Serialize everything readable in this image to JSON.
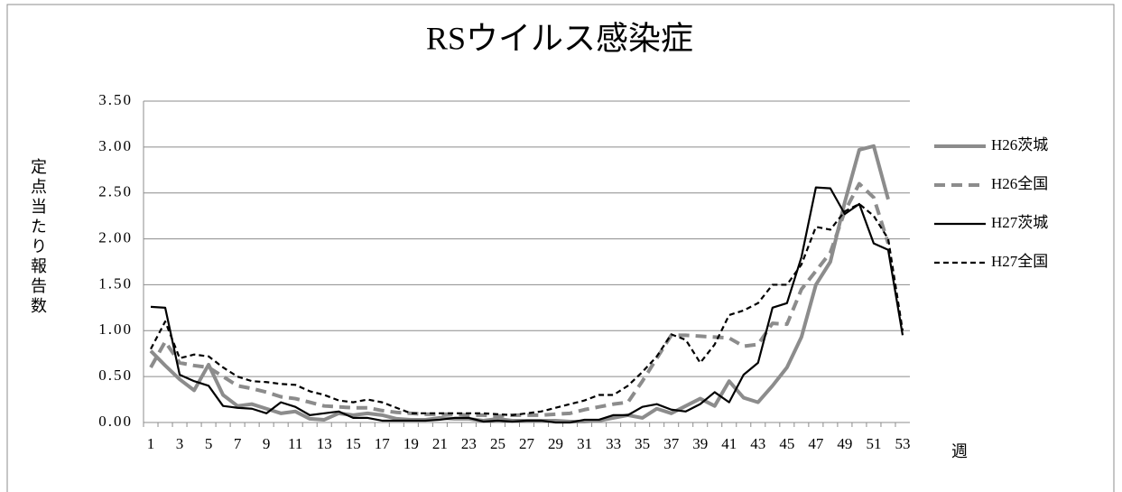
{
  "chart_data": {
    "type": "line",
    "title": "RSウイルス感染症",
    "y_label": "定点当たり報告数",
    "x_label": "週",
    "categories": [
      1,
      null,
      3,
      null,
      5,
      null,
      7,
      null,
      9,
      null,
      11,
      null,
      13,
      null,
      15,
      null,
      17,
      null,
      19,
      null,
      21,
      null,
      23,
      null,
      25,
      null,
      27,
      null,
      29,
      null,
      31,
      null,
      33,
      null,
      35,
      null,
      37,
      null,
      39,
      null,
      41,
      null,
      43,
      null,
      45,
      null,
      47,
      null,
      49,
      null,
      51,
      null,
      53
    ],
    "ylim": [
      0,
      3.5
    ],
    "yticks": [
      {
        "value": 0,
        "label": "0.00"
      },
      {
        "value": 0.5,
        "label": "0.50"
      },
      {
        "value": 1,
        "label": "1.00"
      },
      {
        "value": 1.5,
        "label": "1.50"
      },
      {
        "value": 2,
        "label": "2.00"
      },
      {
        "value": 2.5,
        "label": "2.50"
      },
      {
        "value": 3,
        "label": "3.00"
      },
      {
        "value": 3.5,
        "label": "3.50"
      }
    ],
    "grid": true,
    "legend": "right",
    "series": [
      {
        "name": "H26茨城",
        "color": "#8c8c8c",
        "dashed": false,
        "width": 4,
        "values": [
          0.78,
          0.62,
          0.47,
          0.35,
          0.63,
          0.3,
          0.18,
          0.2,
          0.15,
          0.1,
          0.12,
          0.04,
          0.03,
          0.1,
          0.08,
          0.1,
          0.08,
          0.04,
          0.03,
          0.03,
          0.05,
          0.04,
          0.04,
          0.02,
          0.04,
          0.02,
          0.02,
          0.02,
          0.02,
          0.01,
          0.01,
          0.02,
          0.05,
          0.08,
          0.05,
          0.15,
          0.1,
          0.18,
          0.26,
          0.18,
          0.45,
          0.27,
          0.22,
          0.4,
          0.6,
          0.93,
          1.5,
          1.75,
          2.4,
          2.97,
          3.01,
          2.43,
          null
        ]
      },
      {
        "name": "H26全国",
        "color": "#8c8c8c",
        "dashed": true,
        "width": 4,
        "values": [
          0.6,
          0.88,
          0.65,
          0.62,
          0.6,
          0.5,
          0.4,
          0.37,
          0.33,
          0.28,
          0.26,
          0.22,
          0.18,
          0.17,
          0.16,
          0.16,
          0.13,
          0.11,
          0.1,
          0.09,
          0.09,
          0.09,
          0.08,
          0.08,
          0.07,
          0.08,
          0.08,
          0.08,
          0.09,
          0.1,
          0.14,
          0.17,
          0.2,
          0.22,
          0.45,
          0.7,
          0.95,
          0.95,
          0.94,
          0.93,
          0.92,
          0.83,
          0.85,
          1.08,
          1.07,
          1.45,
          1.65,
          1.85,
          2.3,
          2.6,
          2.45,
          1.95,
          null
        ]
      },
      {
        "name": "H27茨城",
        "color": "#000000",
        "dashed": false,
        "width": 2.2,
        "values": [
          1.26,
          1.25,
          0.52,
          0.45,
          0.4,
          0.18,
          0.16,
          0.15,
          0.1,
          0.22,
          0.17,
          0.08,
          0.1,
          0.12,
          0.05,
          0.05,
          0.02,
          0.02,
          0.02,
          0.02,
          0.03,
          0.05,
          0.05,
          0.01,
          0.02,
          0.01,
          0.02,
          0.02,
          0,
          0,
          0.03,
          0.03,
          0.08,
          0.08,
          0.17,
          0.2,
          0.14,
          0.12,
          0.2,
          0.33,
          0.22,
          0.52,
          0.65,
          1.25,
          1.3,
          1.8,
          2.56,
          2.55,
          2.27,
          2.38,
          1.95,
          1.88,
          0.95
        ]
      },
      {
        "name": "H27全国",
        "color": "#000000",
        "dashed": true,
        "width": 2.2,
        "values": [
          0.8,
          1.1,
          0.7,
          0.74,
          0.72,
          0.6,
          0.5,
          0.45,
          0.44,
          0.42,
          0.41,
          0.34,
          0.3,
          0.24,
          0.22,
          0.25,
          0.22,
          0.16,
          0.1,
          0.1,
          0.1,
          0.1,
          0.1,
          0.1,
          0.09,
          0.08,
          0.1,
          0.12,
          0.16,
          0.2,
          0.24,
          0.3,
          0.3,
          0.4,
          0.55,
          0.72,
          0.96,
          0.9,
          0.65,
          0.85,
          1.17,
          1.22,
          1.3,
          1.5,
          1.5,
          1.72,
          2.13,
          2.1,
          2.3,
          2.38,
          2.25,
          2.0,
          1.0
        ]
      }
    ]
  }
}
